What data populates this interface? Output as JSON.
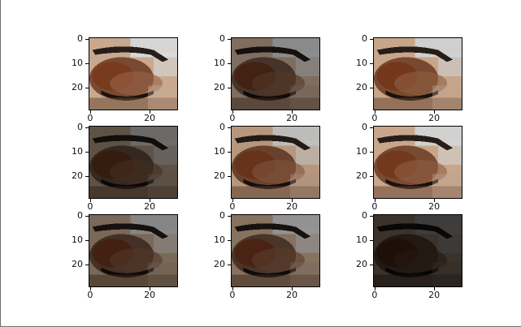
{
  "figure": {
    "rows": 3,
    "cols": 3,
    "panel_count": 9,
    "subject": "pixelated close-up of a closed eye with eyebrow",
    "y_ticks": [
      "0",
      "10",
      "20"
    ],
    "x_ticks": [
      "0",
      "20"
    ],
    "panels": [
      {
        "brightness": 1.0,
        "base": "#c8a88e",
        "shadow": "#6b3a22",
        "sky": "#d9dee2"
      },
      {
        "brightness": 0.55,
        "base": "#7f6d5f",
        "shadow": "#3b2a20",
        "sky": "#8d8f93"
      },
      {
        "brightness": 0.95,
        "base": "#c6a58a",
        "shadow": "#6a3820",
        "sky": "#d2d6d8"
      },
      {
        "brightness": 0.45,
        "base": "#5e5246",
        "shadow": "#2d221a",
        "sky": "#6d6e70"
      },
      {
        "brightness": 0.85,
        "base": "#b6977d",
        "shadow": "#5c3320",
        "sky": "#bfc2c4"
      },
      {
        "brightness": 0.95,
        "base": "#c7a68b",
        "shadow": "#6b3922",
        "sky": "#d4d8da"
      },
      {
        "brightness": 0.55,
        "base": "#7a6858",
        "shadow": "#3a281d",
        "sky": "#8a8b8d"
      },
      {
        "brightness": 0.6,
        "base": "#86725f",
        "shadow": "#3f2b1f",
        "sky": "#95979a"
      },
      {
        "brightness": 0.25,
        "base": "#3a322b",
        "shadow": "#1c1511",
        "sky": "#3f3f40"
      }
    ]
  }
}
